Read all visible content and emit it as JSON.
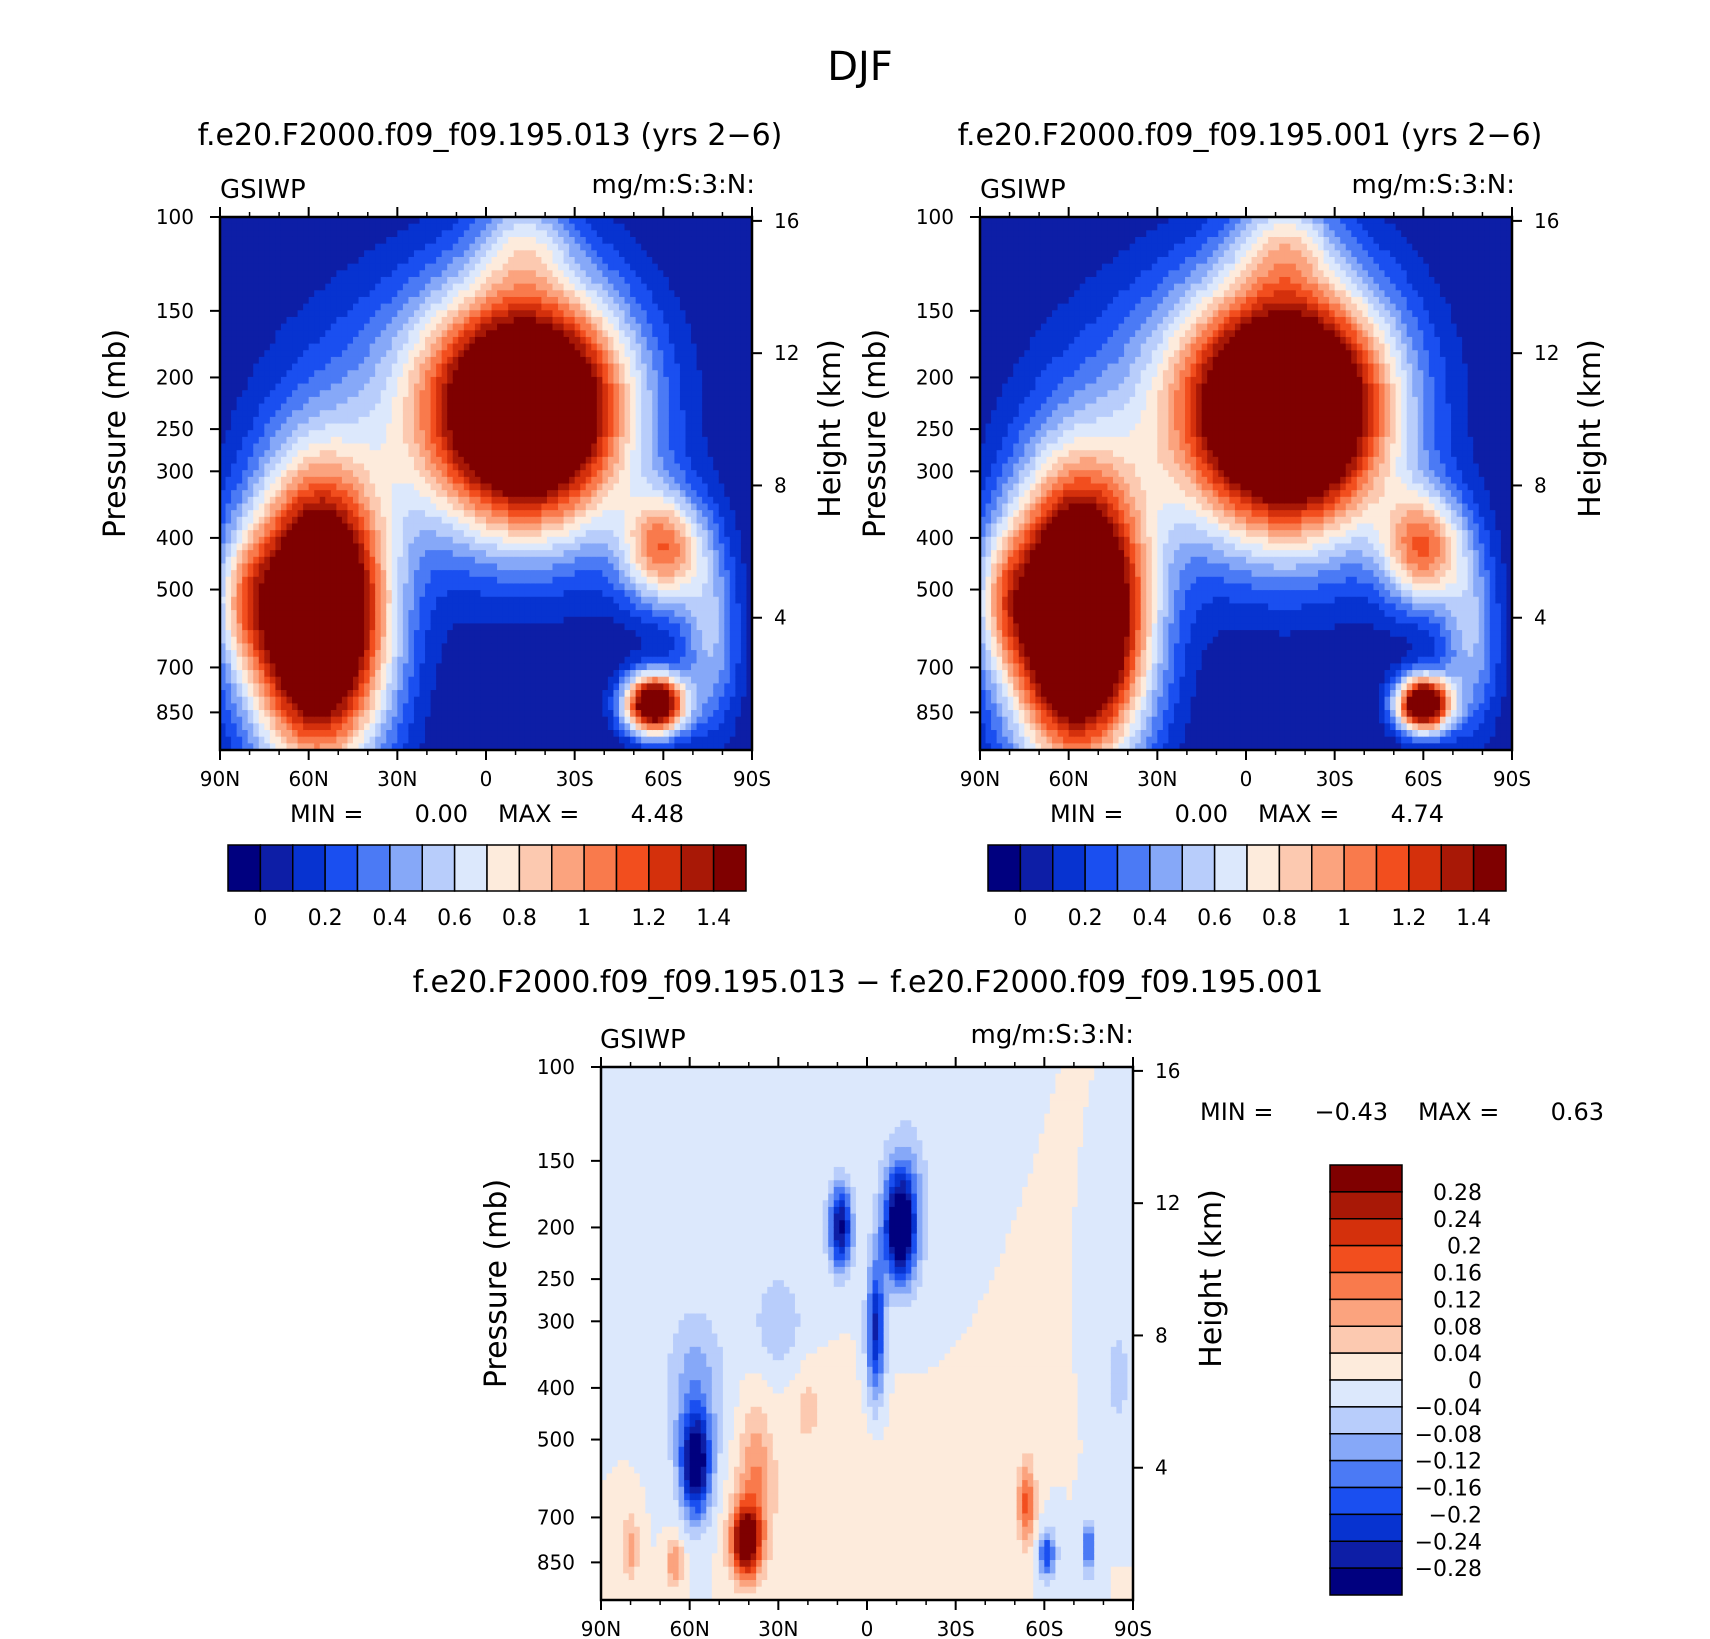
{
  "page": {
    "title": "DJF"
  },
  "panels": [
    {
      "id": "p1",
      "title": "f.e20.F2000.f09_f09.195.013 (yrs 2−6)",
      "var_name": "GSIWP",
      "units": "mg/m:S:3:N:",
      "stats": {
        "min_label": "MIN =",
        "min_value": "0.00",
        "max_label": "MAX =",
        "max_value": "4.48"
      }
    },
    {
      "id": "p2",
      "title": "f.e20.F2000.f09_f09.195.001 (yrs 2−6)",
      "var_name": "GSIWP",
      "units": "mg/m:S:3:N:",
      "stats": {
        "min_label": "MIN =",
        "min_value": "0.00",
        "max_label": "MAX =",
        "max_value": "4.74"
      }
    },
    {
      "id": "p3",
      "title": "f.e20.F2000.f09_f09.195.013 − f.e20.F2000.f09_f09.195.001",
      "var_name": "GSIWP",
      "units": "mg/m:S:3:N:",
      "stats": {
        "min_label": "MIN =",
        "min_value": "−0.43",
        "max_label": "MAX =",
        "max_value": "0.63"
      }
    }
  ],
  "chart_data": [
    {
      "type": "heatmap",
      "title": "f.e20.F2000.f09_f09.195.013 (yrs 2−6)",
      "xlabel": "",
      "ylabel": "Pressure (mb)",
      "y2label": "Height (km)",
      "x_ticks": [
        "90N",
        "60N",
        "30N",
        "0",
        "30S",
        "60S",
        "90S"
      ],
      "xlim": [
        90,
        -90
      ],
      "y_ticks": [
        100,
        150,
        200,
        250,
        300,
        400,
        500,
        700,
        850
      ],
      "ylim": [
        100,
        1000
      ],
      "y_scale": "log",
      "y2_ticks": [
        4,
        8,
        12,
        16
      ],
      "colorbar": {
        "orientation": "horizontal",
        "labels": [
          "0",
          "0.2",
          "0.4",
          "0.6",
          "0.8",
          "1",
          "1.2",
          "1.4"
        ],
        "colors": [
          "#00007f",
          "#0d1ea6",
          "#0733d0",
          "#1a4ff0",
          "#4b7af5",
          "#86a8f8",
          "#b8cdfb",
          "#dce8fc",
          "#fdebdc",
          "#fcc9b0",
          "#fba37e",
          "#f97a4c",
          "#f24e1e",
          "#d4300c",
          "#a81806",
          "#7f0000"
        ]
      },
      "stats": {
        "min": 0.0,
        "max": 4.48
      },
      "blobs": [
        {
          "x": -15,
          "y": 230,
          "rx": 33,
          "ry": 0.52,
          "v": 2.2
        },
        {
          "x": -13,
          "y": 110,
          "rx": 16,
          "ry": 0.22,
          "v": 0.4
        },
        {
          "x": 57,
          "y": 560,
          "rx": 23,
          "ry": 0.62,
          "v": 2.3
        },
        {
          "x": -60,
          "y": 420,
          "rx": 14,
          "ry": 0.25,
          "v": 1.0
        },
        {
          "x": -57,
          "y": 820,
          "rx": 10,
          "ry": 0.13,
          "v": 1.9
        },
        {
          "x": 20,
          "y": 220,
          "rx": 42,
          "ry": 0.55,
          "v": 0.35
        },
        {
          "x": 82,
          "y": 520,
          "rx": 10,
          "ry": 0.3,
          "v": 0.45
        },
        {
          "x": -76,
          "y": 620,
          "rx": 10,
          "ry": 0.4,
          "v": 0.5
        }
      ]
    },
    {
      "type": "heatmap",
      "title": "f.e20.F2000.f09_f09.195.001 (yrs 2−6)",
      "xlabel": "",
      "ylabel": "Pressure (mb)",
      "y2label": "Height (km)",
      "x_ticks": [
        "90N",
        "60N",
        "30N",
        "0",
        "30S",
        "60S",
        "90S"
      ],
      "xlim": [
        90,
        -90
      ],
      "y_ticks": [
        100,
        150,
        200,
        250,
        300,
        400,
        500,
        700,
        850
      ],
      "ylim": [
        100,
        1000
      ],
      "y_scale": "log",
      "y2_ticks": [
        4,
        8,
        12,
        16
      ],
      "colorbar": {
        "orientation": "horizontal",
        "labels": [
          "0",
          "0.2",
          "0.4",
          "0.6",
          "0.8",
          "1",
          "1.2",
          "1.4"
        ],
        "colors": [
          "#00007f",
          "#0d1ea6",
          "#0733d0",
          "#1a4ff0",
          "#4b7af5",
          "#86a8f8",
          "#b8cdfb",
          "#dce8fc",
          "#fdebdc",
          "#fcc9b0",
          "#fba37e",
          "#f97a4c",
          "#f24e1e",
          "#d4300c",
          "#a81806",
          "#7f0000"
        ]
      },
      "stats": {
        "min": 0.0,
        "max": 4.74
      },
      "blobs": [
        {
          "x": -15,
          "y": 230,
          "rx": 34,
          "ry": 0.54,
          "v": 2.3
        },
        {
          "x": -13,
          "y": 110,
          "rx": 16,
          "ry": 0.23,
          "v": 0.45
        },
        {
          "x": 57,
          "y": 560,
          "rx": 23,
          "ry": 0.62,
          "v": 2.4
        },
        {
          "x": -60,
          "y": 420,
          "rx": 14,
          "ry": 0.25,
          "v": 1.0
        },
        {
          "x": -60,
          "y": 820,
          "rx": 9,
          "ry": 0.12,
          "v": 1.9
        },
        {
          "x": 20,
          "y": 220,
          "rx": 42,
          "ry": 0.55,
          "v": 0.35
        },
        {
          "x": 82,
          "y": 520,
          "rx": 10,
          "ry": 0.3,
          "v": 0.45
        },
        {
          "x": -76,
          "y": 620,
          "rx": 10,
          "ry": 0.4,
          "v": 0.5
        }
      ]
    },
    {
      "type": "heatmap",
      "title": "f.e20.F2000.f09_f09.195.013 − f.e20.F2000.f09_f09.195.001",
      "xlabel": "",
      "ylabel": "Pressure (mb)",
      "y2label": "Height (km)",
      "x_ticks": [
        "90N",
        "60N",
        "30N",
        "0",
        "30S",
        "60S",
        "90S"
      ],
      "xlim": [
        90,
        -90
      ],
      "y_ticks": [
        100,
        150,
        200,
        250,
        300,
        400,
        500,
        700,
        850
      ],
      "ylim": [
        100,
        1000
      ],
      "y_scale": "log",
      "y2_ticks": [
        4,
        8,
        12,
        16
      ],
      "colorbar": {
        "orientation": "vertical",
        "labels": [
          "0.28",
          "0.24",
          "0.2",
          "0.16",
          "0.12",
          "0.08",
          "0.04",
          "0",
          "−0.04",
          "−0.08",
          "−0.12",
          "−0.16",
          "−0.2",
          "−0.24",
          "−0.28"
        ],
        "colors": [
          "#7f0000",
          "#a81806",
          "#d4300c",
          "#f24e1e",
          "#f97a4c",
          "#fba37e",
          "#fcc9b0",
          "#fdebdc",
          "#dce8fc",
          "#b8cdfb",
          "#86a8f8",
          "#4b7af5",
          "#1a4ff0",
          "#0733d0",
          "#0d1ea6",
          "#00007f"
        ]
      },
      "stats": {
        "min": -0.43,
        "max": 0.63
      },
      "blobs": [
        {
          "x": 9,
          "y": 200,
          "rx": 4,
          "ry": 0.18,
          "v": -0.3
        },
        {
          "x": -11,
          "y": 200,
          "rx": 5,
          "ry": 0.22,
          "v": -0.33
        },
        {
          "x": -3,
          "y": 310,
          "rx": 3,
          "ry": 0.3,
          "v": -0.25
        },
        {
          "x": -13,
          "y": 180,
          "rx": 8,
          "ry": 0.35,
          "v": -0.1
        },
        {
          "x": 58,
          "y": 560,
          "rx": 5,
          "ry": 0.22,
          "v": -0.33
        },
        {
          "x": 58,
          "y": 400,
          "rx": 10,
          "ry": 0.35,
          "v": -0.1
        },
        {
          "x": 41,
          "y": 780,
          "rx": 5,
          "ry": 0.15,
          "v": 0.35
        },
        {
          "x": 38,
          "y": 600,
          "rx": 6,
          "ry": 0.3,
          "v": 0.12
        },
        {
          "x": -54,
          "y": 660,
          "rx": 3,
          "ry": 0.18,
          "v": 0.18
        },
        {
          "x": -61,
          "y": 820,
          "rx": 3,
          "ry": 0.1,
          "v": -0.2
        },
        {
          "x": -75,
          "y": 800,
          "rx": 2,
          "ry": 0.12,
          "v": -0.18
        },
        {
          "x": 30,
          "y": 300,
          "rx": 8,
          "ry": 0.2,
          "v": -0.08
        },
        {
          "x": 80,
          "y": 800,
          "rx": 3,
          "ry": 0.15,
          "v": 0.1
        },
        {
          "x": 65,
          "y": 850,
          "rx": 3,
          "ry": 0.1,
          "v": 0.12
        },
        {
          "x": 10,
          "y": 600,
          "rx": 25,
          "ry": 0.3,
          "v": 0.03
        },
        {
          "x": -85,
          "y": 380,
          "rx": 4,
          "ry": 0.2,
          "v": -0.07
        },
        {
          "x": 20,
          "y": 430,
          "rx": 5,
          "ry": 0.15,
          "v": 0.05
        }
      ]
    }
  ]
}
